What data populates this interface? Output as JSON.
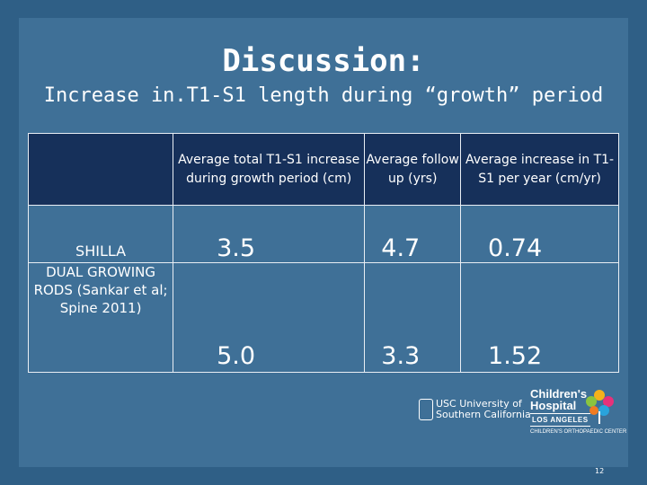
{
  "title": "Discussion:",
  "subtitle": "Increase in.T1-S1 length during “growth” period",
  "table": {
    "headers": [
      "",
      "Average total T1-S1 increase during growth period (cm)",
      "Average follow up (yrs)",
      "Average increase in T1-S1 per year (cm/yr)"
    ],
    "rows": [
      {
        "label": "SHILLA",
        "values": [
          "3.5",
          "4.7",
          "0.74"
        ]
      },
      {
        "label": "DUAL GROWING RODS (Sankar et al; Spine 2011)",
        "values": [
          "5.0",
          "3.3",
          "1.52"
        ]
      }
    ]
  },
  "logos": {
    "usc_line1": "USC University of",
    "usc_line2": "Southern California",
    "chla_line1": "Children's",
    "chla_line2": "Hospital",
    "chla_line3": "LOS ANGELES",
    "chla_line4": "CHILDREN'S ORTHOPAEDIC CENTER"
  },
  "page_number": "12"
}
